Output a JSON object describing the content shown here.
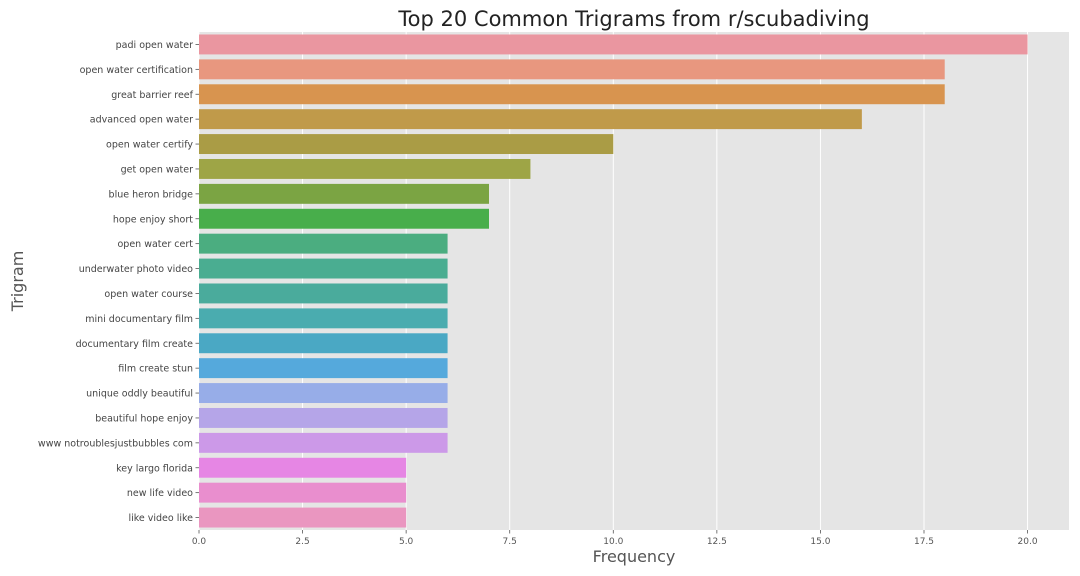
{
  "chart_data": {
    "type": "bar",
    "orientation": "horizontal",
    "title": "Top 20 Common Trigrams from r/scubadiving",
    "xlabel": "Frequency",
    "ylabel": "Trigram",
    "xlim": [
      0,
      21
    ],
    "xticks": [
      0,
      2.5,
      5,
      7.5,
      10,
      12.5,
      15,
      17.5,
      20
    ],
    "xtick_labels": [
      "0.0",
      "2.5",
      "5.0",
      "7.5",
      "10.0",
      "12.5",
      "15.0",
      "17.5",
      "20.0"
    ],
    "grid": true,
    "categories": [
      "padi open water",
      "open water certification",
      "great barrier reef",
      "advanced open water",
      "open water certify",
      "get open water",
      "blue heron bridge",
      "hope enjoy short",
      "open water cert",
      "underwater photo video",
      "open water course",
      "mini documentary film",
      "documentary film create",
      "film create stun",
      "unique oddly beautiful",
      "beautiful hope enjoy",
      "www notroublesjustbubbles com",
      "key largo florida",
      "new life video",
      "like video like"
    ],
    "values": [
      20,
      18,
      18,
      16,
      10,
      8,
      7,
      7,
      6,
      6,
      6,
      6,
      6,
      6,
      6,
      6,
      6,
      5,
      5,
      5
    ],
    "colors": [
      "#ea96a0",
      "#e8977f",
      "#d8944f",
      "#c09a4a",
      "#aa9c45",
      "#9ea546",
      "#7ba443",
      "#48ae4b",
      "#4bad80",
      "#4aad91",
      "#4aab9c",
      "#4aacaf",
      "#4aa8c4",
      "#55a9dc",
      "#97ade8",
      "#b5a5e8",
      "#cc99e8",
      "#e686e4",
      "#e98ece",
      "#ea96c0"
    ],
    "plot_background": "#e5e5e5",
    "grid_color": "#ffffff"
  }
}
